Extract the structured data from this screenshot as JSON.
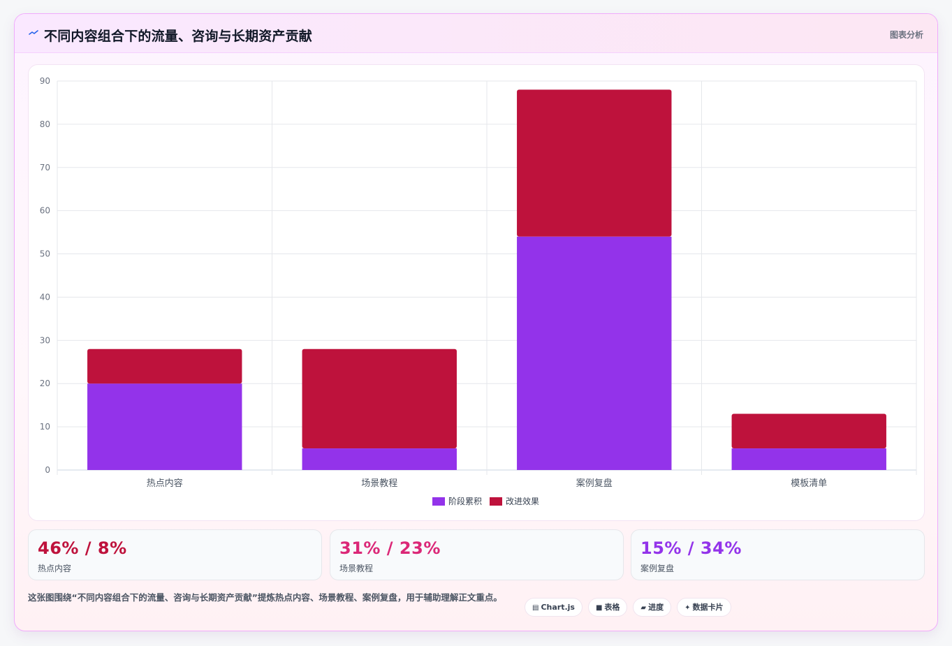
{
  "header": {
    "title": "不同内容组合下的流量、咨询与长期资产贡献",
    "tag": "图表分析",
    "icon": "sparkline-icon"
  },
  "chart_data": {
    "type": "bar",
    "stacked": true,
    "categories": [
      "热点内容",
      "场景教程",
      "案例复盘",
      "模板清单"
    ],
    "series": [
      {
        "name": "阶段累积",
        "values": [
          20,
          5,
          54,
          5
        ],
        "color": "#9333ea"
      },
      {
        "name": "改进效果",
        "values": [
          8,
          23,
          34,
          8
        ],
        "color": "#be123c"
      }
    ],
    "ylim": [
      0,
      90
    ],
    "yticks": [
      0,
      10,
      20,
      30,
      40,
      50,
      60,
      70,
      80,
      90
    ],
    "grid": true,
    "legend": "bottom",
    "title": "",
    "xlabel": "",
    "ylabel": ""
  },
  "stats": [
    {
      "value": "46% / 8%",
      "label": "热点内容",
      "color": "#be123c"
    },
    {
      "value": "31% / 23%",
      "label": "场景教程",
      "color": "#db2777"
    },
    {
      "value": "15% / 34%",
      "label": "案例复盘",
      "color": "#9333ea"
    }
  ],
  "footer": {
    "note": "这张图围绕“不同内容组合下的流量、咨询与长期资产贡献”提炼热点内容、场景教程、案例复盘，用于辅助理解正文重点。",
    "chips": [
      {
        "label": "Chart.js",
        "glyph": "▤",
        "icon": "chart-icon"
      },
      {
        "label": "表格",
        "glyph": "■",
        "icon": "table-icon"
      },
      {
        "label": "进度",
        "glyph": "▰",
        "icon": "progress-icon"
      },
      {
        "label": "数据卡片",
        "glyph": "✦",
        "icon": "sparkle-icon"
      }
    ]
  }
}
